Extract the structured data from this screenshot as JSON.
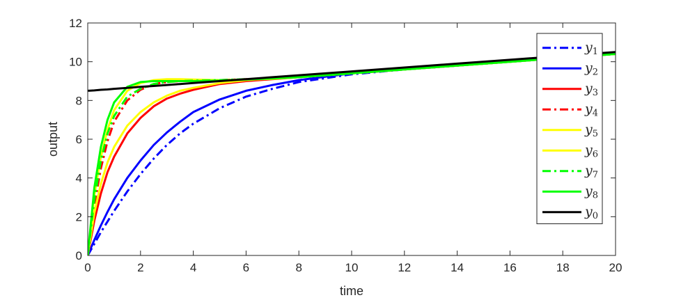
{
  "chart_data": {
    "type": "line",
    "title": "",
    "xlabel": "time",
    "ylabel": "output",
    "xlim": [
      0,
      20
    ],
    "ylim": [
      0,
      12
    ],
    "xticks": [
      0,
      2,
      4,
      6,
      8,
      10,
      12,
      14,
      16,
      18,
      20
    ],
    "yticks": [
      0,
      2,
      4,
      6,
      8,
      10,
      12
    ],
    "grid": false,
    "legend_position": "top-right",
    "x": [
      0,
      0.25,
      0.5,
      0.75,
      1,
      1.5,
      2,
      2.5,
      3,
      3.5,
      4,
      5,
      6,
      7,
      8,
      10,
      12,
      14,
      16,
      18,
      20
    ],
    "series": [
      {
        "name": "y1",
        "base": "y",
        "sub": "1",
        "color": "#0000ff",
        "style": "dashdot",
        "values": [
          0,
          0.6,
          1.2,
          1.75,
          2.3,
          3.3,
          4.2,
          5.0,
          5.7,
          6.3,
          6.8,
          7.6,
          8.2,
          8.6,
          8.95,
          9.35,
          9.6,
          9.8,
          10.0,
          10.2,
          10.4
        ]
      },
      {
        "name": "y2",
        "base": "y",
        "sub": "2",
        "color": "#0000ff",
        "style": "solid",
        "values": [
          0,
          0.8,
          1.55,
          2.25,
          2.9,
          4.0,
          4.9,
          5.7,
          6.35,
          6.9,
          7.4,
          8.05,
          8.5,
          8.8,
          9.05,
          9.4,
          9.6,
          9.8,
          10.0,
          10.2,
          10.4
        ]
      },
      {
        "name": "y3",
        "base": "y",
        "sub": "3",
        "color": "#ff0000",
        "style": "solid",
        "values": [
          0,
          1.8,
          3.2,
          4.3,
          5.1,
          6.3,
          7.1,
          7.7,
          8.1,
          8.35,
          8.55,
          8.85,
          9.0,
          9.1,
          9.2,
          9.4,
          9.6,
          9.8,
          10.0,
          10.2,
          10.4
        ]
      },
      {
        "name": "y4",
        "base": "y",
        "sub": "4",
        "color": "#ff0000",
        "style": "dashdot",
        "values": [
          0,
          2.6,
          4.5,
          5.9,
          6.9,
          8.0,
          8.55,
          8.85,
          8.95,
          9.0,
          9.02,
          9.05,
          9.1,
          9.15,
          9.2,
          9.4,
          9.6,
          9.8,
          10.0,
          10.2,
          10.4
        ]
      },
      {
        "name": "y5",
        "base": "y",
        "sub": "5",
        "color": "#ffff00",
        "style": "solid",
        "values": [
          0,
          2.2,
          3.7,
          4.8,
          5.6,
          6.7,
          7.4,
          7.9,
          8.25,
          8.5,
          8.65,
          8.9,
          9.05,
          9.15,
          9.2,
          9.4,
          9.6,
          9.8,
          10.0,
          10.2,
          10.4
        ]
      },
      {
        "name": "y6",
        "base": "y",
        "sub": "6",
        "color": "#ffff00",
        "style": "solid",
        "values": [
          0,
          3.1,
          5.1,
          6.5,
          7.5,
          8.5,
          8.9,
          9.05,
          9.1,
          9.1,
          9.08,
          9.05,
          9.08,
          9.12,
          9.2,
          9.4,
          9.6,
          9.8,
          10.0,
          10.2,
          10.4
        ]
      },
      {
        "name": "y7",
        "base": "y",
        "sub": "7",
        "color": "#00ff00",
        "style": "dashdot",
        "values": [
          0,
          2.9,
          4.9,
          6.3,
          7.2,
          8.2,
          8.6,
          8.85,
          8.95,
          9.0,
          9.02,
          9.05,
          9.1,
          9.15,
          9.2,
          9.4,
          9.6,
          9.8,
          10.0,
          10.2,
          10.4
        ]
      },
      {
        "name": "y8",
        "base": "y",
        "sub": "8",
        "color": "#00ff00",
        "style": "solid",
        "values": [
          0,
          3.5,
          5.6,
          7.0,
          7.9,
          8.7,
          8.95,
          9.0,
          9.0,
          9.0,
          9.0,
          9.03,
          9.08,
          9.14,
          9.2,
          9.4,
          9.6,
          9.8,
          10.0,
          10.2,
          10.4
        ]
      },
      {
        "name": "y0",
        "base": "y",
        "sub": "0",
        "color": "#000000",
        "style": "solid",
        "values": [
          8.5,
          8.52,
          8.55,
          8.57,
          8.6,
          8.65,
          8.7,
          8.75,
          8.8,
          8.85,
          8.9,
          9.0,
          9.1,
          9.2,
          9.3,
          9.5,
          9.7,
          9.9,
          10.1,
          10.3,
          10.5
        ]
      }
    ]
  }
}
